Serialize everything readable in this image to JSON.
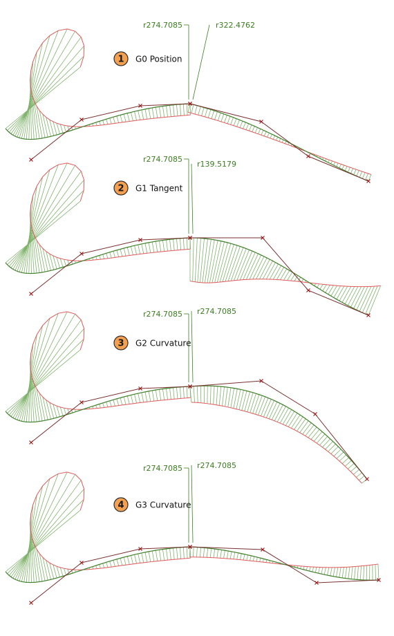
{
  "colors": {
    "comb": "#7fb26a",
    "envelope": "#e0585a",
    "curve": "#3f7f2a",
    "control_polygon": "#7a2f2f",
    "control_point": "#9b1b1b",
    "badge_fill": "#f3a050",
    "badge_stroke": "#2b2b2b",
    "label": "#3a7d1f"
  },
  "panels": [
    {
      "number": "1",
      "title": "G0 Position",
      "radius_left": "r274.7085",
      "radius_right": "r322.4762"
    },
    {
      "number": "2",
      "title": "G1 Tangent",
      "radius_left": "r274.7085",
      "radius_right": "r139.5179"
    },
    {
      "number": "3",
      "title": "G2 Curvature",
      "radius_left": "r274.7085",
      "radius_right": "r274.7085"
    },
    {
      "number": "4",
      "title": "G3 Curvature",
      "radius_left": "r274.7085",
      "radius_right": "r274.7085"
    }
  ]
}
